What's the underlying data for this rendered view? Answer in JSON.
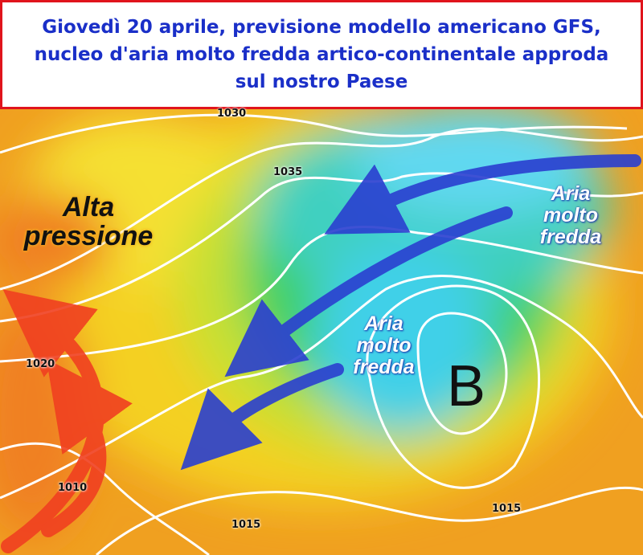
{
  "header": {
    "title": "Giovedì 20 aprile, previsione modello americano GFS, nucleo d'aria molto fredda artico-continentale approda sul nostro Paese"
  },
  "annotations": [
    "Alta pressione",
    "Aria molto fredda",
    "Aria molto fredda",
    "B"
  ],
  "isobar_labels": [
    "1030",
    "1035",
    "1020",
    "1010",
    "1015",
    "1015"
  ]
}
